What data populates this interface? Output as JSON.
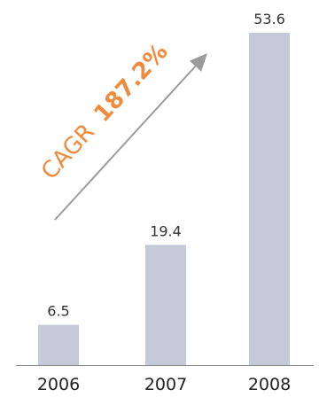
{
  "chart_data": {
    "type": "bar",
    "title": "",
    "xlabel": "",
    "ylabel": "",
    "categories": [
      "2006",
      "2007",
      "2008"
    ],
    "values": [
      6.5,
      19.4,
      53.6
    ],
    "value_labels": [
      "6.5",
      "19.4",
      "53.6"
    ],
    "ylim": [
      0,
      53.6
    ],
    "grid": false,
    "legend": "none",
    "annotation": {
      "prefix": "CAGR",
      "value": "187.2%",
      "arrow": "diagonal up-right"
    }
  },
  "colors": {
    "bar": "#c6cad8",
    "axis": "#8a8a8a",
    "annotation_text": "#f08a3c",
    "arrow": "#9b9b9b"
  }
}
